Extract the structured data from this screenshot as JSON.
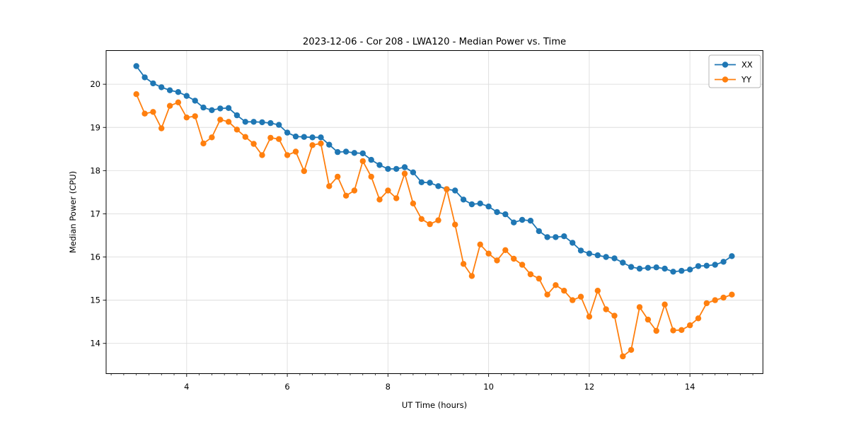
{
  "figure": {
    "background": "#ffffff"
  },
  "legend": {
    "items": [
      "XX",
      "YY"
    ]
  },
  "chart_data": {
    "type": "line",
    "title": "2023-12-06 - Cor 208 - LWA120 - Median Power vs. Time",
    "xlabel": "UT Time (hours)",
    "ylabel": "Median Power (CPU)",
    "xlim": [
      2.4,
      15.45
    ],
    "ylim": [
      13.3,
      20.78
    ],
    "xticks": [
      4,
      6,
      8,
      10,
      12,
      14
    ],
    "yticks": [
      14,
      15,
      16,
      17,
      18,
      19,
      20
    ],
    "minor_xtick_step": 0.25,
    "grid": true,
    "grid_color": "#dddddd",
    "legend_position": "upper right",
    "x": [
      3.0,
      3.167,
      3.333,
      3.5,
      3.667,
      3.833,
      4.0,
      4.167,
      4.333,
      4.5,
      4.667,
      4.833,
      5.0,
      5.167,
      5.333,
      5.5,
      5.667,
      5.833,
      6.0,
      6.167,
      6.333,
      6.5,
      6.667,
      6.833,
      7.0,
      7.167,
      7.333,
      7.5,
      7.667,
      7.833,
      8.0,
      8.167,
      8.333,
      8.5,
      8.667,
      8.833,
      9.0,
      9.167,
      9.333,
      9.5,
      9.667,
      9.833,
      10.0,
      10.167,
      10.333,
      10.5,
      10.667,
      10.833,
      11.0,
      11.167,
      11.333,
      11.5,
      11.667,
      11.833,
      12.0,
      12.167,
      12.333,
      12.5,
      12.667,
      12.833,
      13.0,
      13.167,
      13.333,
      13.5,
      13.667,
      13.833,
      14.0,
      14.167,
      14.333,
      14.5,
      14.667,
      14.833
    ],
    "series": [
      {
        "name": "XX",
        "color": "#1f77b4",
        "marker": "circle",
        "values": [
          20.42,
          20.16,
          20.02,
          19.93,
          19.86,
          19.82,
          19.73,
          19.62,
          19.46,
          19.4,
          19.44,
          19.45,
          19.28,
          19.13,
          19.13,
          19.12,
          19.1,
          19.06,
          18.88,
          18.79,
          18.78,
          18.77,
          18.77,
          18.6,
          18.43,
          18.44,
          18.41,
          18.4,
          18.25,
          18.13,
          18.04,
          18.04,
          18.08,
          17.96,
          17.73,
          17.72,
          17.64,
          17.57,
          17.54,
          17.33,
          17.22,
          17.24,
          17.17,
          17.04,
          16.99,
          16.8,
          16.86,
          16.84,
          16.6,
          16.46,
          16.46,
          16.48,
          16.33,
          16.15,
          16.08,
          16.04,
          16.0,
          15.97,
          15.87,
          15.77,
          15.73,
          15.75,
          15.76,
          15.73,
          15.66,
          15.68,
          15.71,
          15.79,
          15.8,
          15.82,
          15.89,
          16.02
        ]
      },
      {
        "name": "YY",
        "color": "#ff7f0e",
        "marker": "circle",
        "values": [
          19.77,
          19.32,
          19.36,
          18.98,
          19.5,
          19.58,
          19.23,
          19.26,
          18.63,
          18.77,
          19.18,
          19.13,
          18.95,
          18.78,
          18.62,
          18.36,
          18.76,
          18.73,
          18.36,
          18.44,
          17.99,
          18.59,
          18.63,
          17.64,
          17.86,
          17.42,
          17.54,
          18.22,
          17.86,
          17.33,
          17.54,
          17.36,
          17.93,
          17.24,
          16.88,
          16.76,
          16.85,
          17.57,
          16.75,
          15.84,
          15.56,
          16.29,
          16.08,
          15.92,
          16.16,
          15.96,
          15.82,
          15.6,
          15.5,
          15.13,
          15.35,
          15.22,
          15.0,
          15.08,
          14.62,
          15.22,
          14.79,
          14.64,
          13.7,
          13.85,
          14.84,
          14.55,
          14.29,
          14.9,
          14.3,
          14.31,
          14.42,
          14.58,
          14.93,
          15.0,
          15.06,
          15.13
        ]
      }
    ]
  }
}
